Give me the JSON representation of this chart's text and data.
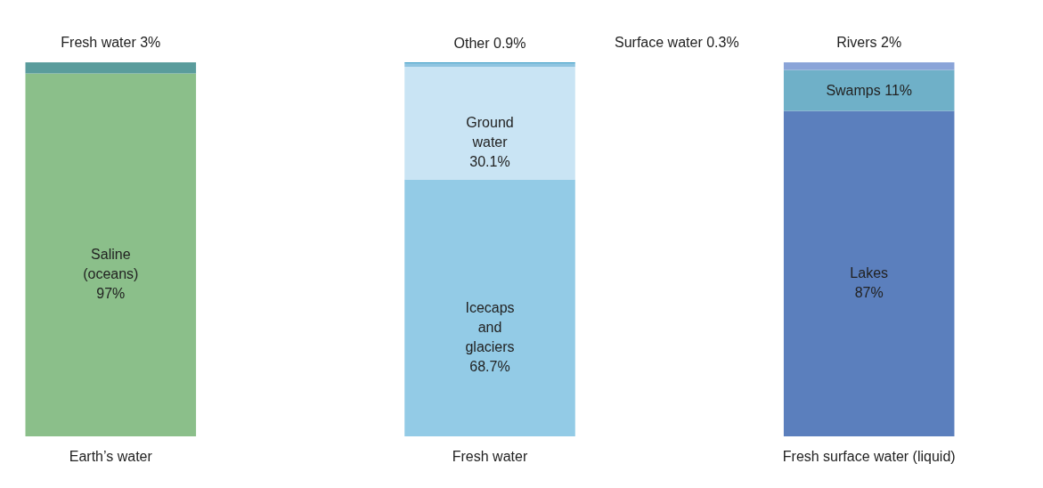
{
  "chart_data": {
    "type": "bar",
    "stacked": true,
    "categories": [
      "Earth’s water",
      "Fresh water",
      "Fresh surface water (liquid)"
    ],
    "series": [
      {
        "name": "Saline (oceans)",
        "color": "#8bbf8a",
        "values": [
          97,
          null,
          null
        ],
        "value_labels": [
          "97%",
          null,
          null
        ]
      },
      {
        "name": "Fresh water",
        "color": "#5a9c9c",
        "values": [
          3,
          null,
          null
        ],
        "value_labels": [
          "3%",
          null,
          null
        ]
      },
      {
        "name": "Icecaps and glaciers",
        "color": "#93cbe6",
        "values": [
          null,
          68.7,
          null
        ],
        "value_labels": [
          null,
          "68.7%",
          null
        ]
      },
      {
        "name": "Ground water",
        "color": "#c9e4f4",
        "values": [
          null,
          30.1,
          null
        ],
        "value_labels": [
          null,
          "30.1%",
          null
        ]
      },
      {
        "name": "Other",
        "color": "#8fc4e0",
        "values": [
          null,
          0.9,
          null
        ],
        "value_labels": [
          null,
          "0.9%",
          null
        ]
      },
      {
        "name": "Surface water",
        "color": "#3e9ec8",
        "values": [
          null,
          0.3,
          null
        ],
        "value_labels": [
          null,
          "0.3%",
          null
        ]
      },
      {
        "name": "Lakes",
        "color": "#5b7fbd",
        "values": [
          null,
          null,
          87
        ],
        "value_labels": [
          null,
          null,
          "87%"
        ]
      },
      {
        "name": "Swamps",
        "color": "#6fb0c8",
        "values": [
          null,
          null,
          11
        ],
        "value_labels": [
          null,
          null,
          "11%"
        ]
      },
      {
        "name": "Rivers",
        "color": "#8aa4d8",
        "values": [
          null,
          null,
          2
        ],
        "value_labels": [
          null,
          null,
          "2%"
        ]
      }
    ]
  }
}
